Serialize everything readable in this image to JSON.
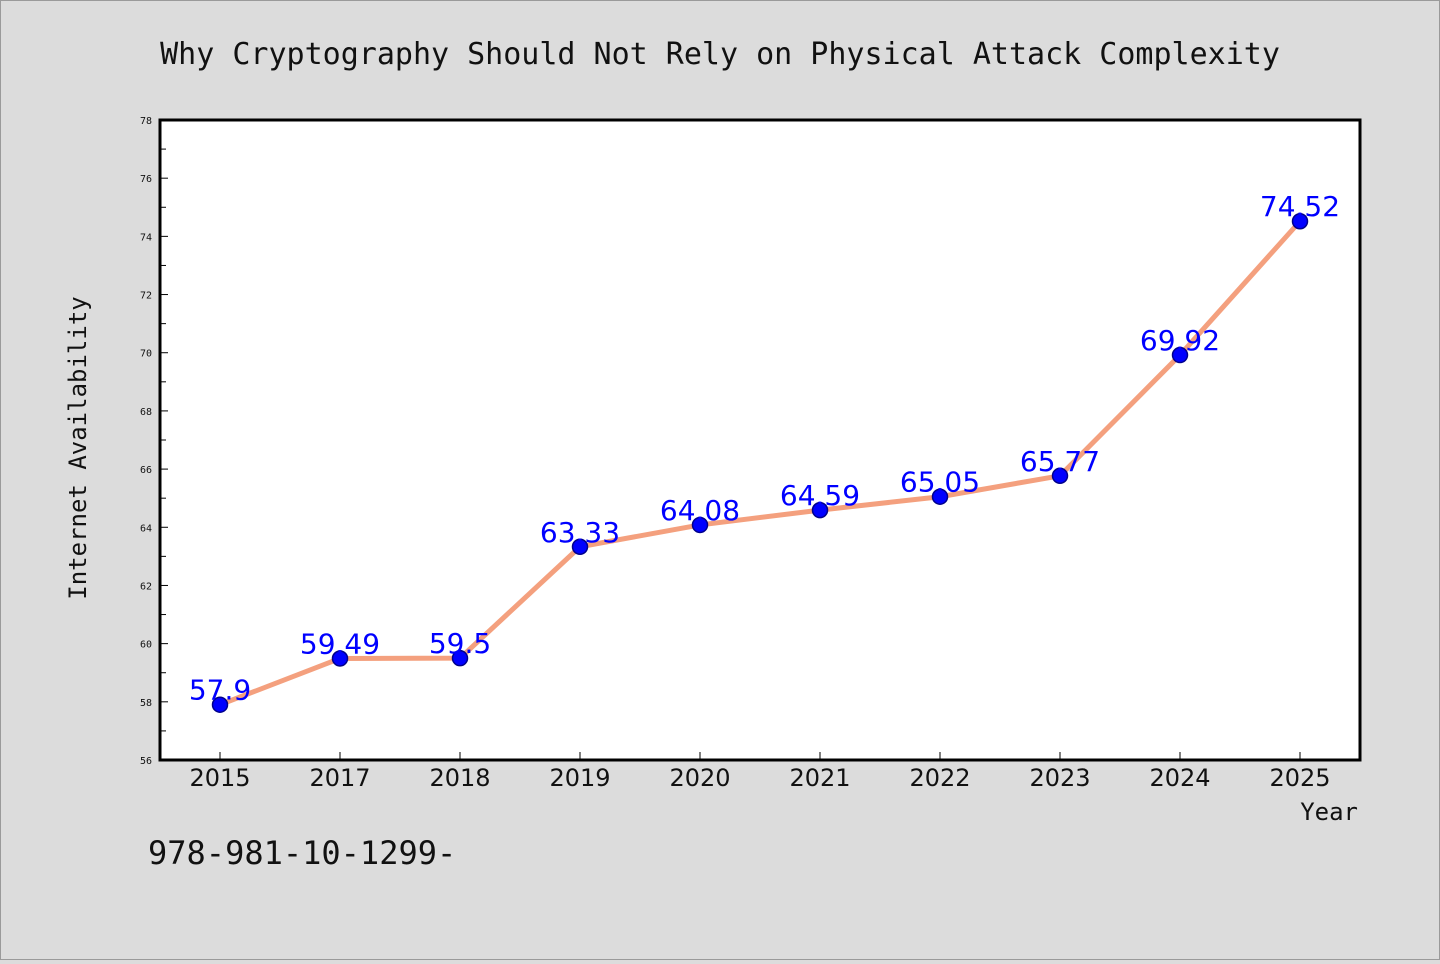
{
  "chart_data": {
    "type": "line",
    "title": "Why Cryptography Should Not Rely on Physical Attack Complexity",
    "xlabel": "Year",
    "ylabel": "Internet Availability",
    "categories": [
      "2015",
      "2017",
      "2018",
      "2019",
      "2020",
      "2021",
      "2022",
      "2023",
      "2024",
      "2025"
    ],
    "series": [
      {
        "values": [
          57.9,
          59.49,
          59.5,
          63.33,
          64.08,
          64.59,
          65.05,
          65.77,
          69.92,
          74.52
        ],
        "labels": [
          "57.9",
          "59.49",
          "59.5",
          "63.33",
          "64.08",
          "64.59",
          "65.05",
          "65.77",
          "69.92",
          "74.52"
        ]
      }
    ],
    "ylim": [
      56,
      78
    ],
    "yticks": [
      56,
      58,
      60,
      62,
      64,
      66,
      68,
      70,
      72,
      74,
      76,
      78
    ],
    "grid": false,
    "legend": "none",
    "colors": {
      "line": "#f4a07e",
      "marker": "#0000ff",
      "marker_edge": "#00008b",
      "data_label": "#0000ff",
      "background": "#dcdcdc",
      "plot_background": "#ffffff"
    }
  },
  "footer_text": "978-981-10-1299-"
}
